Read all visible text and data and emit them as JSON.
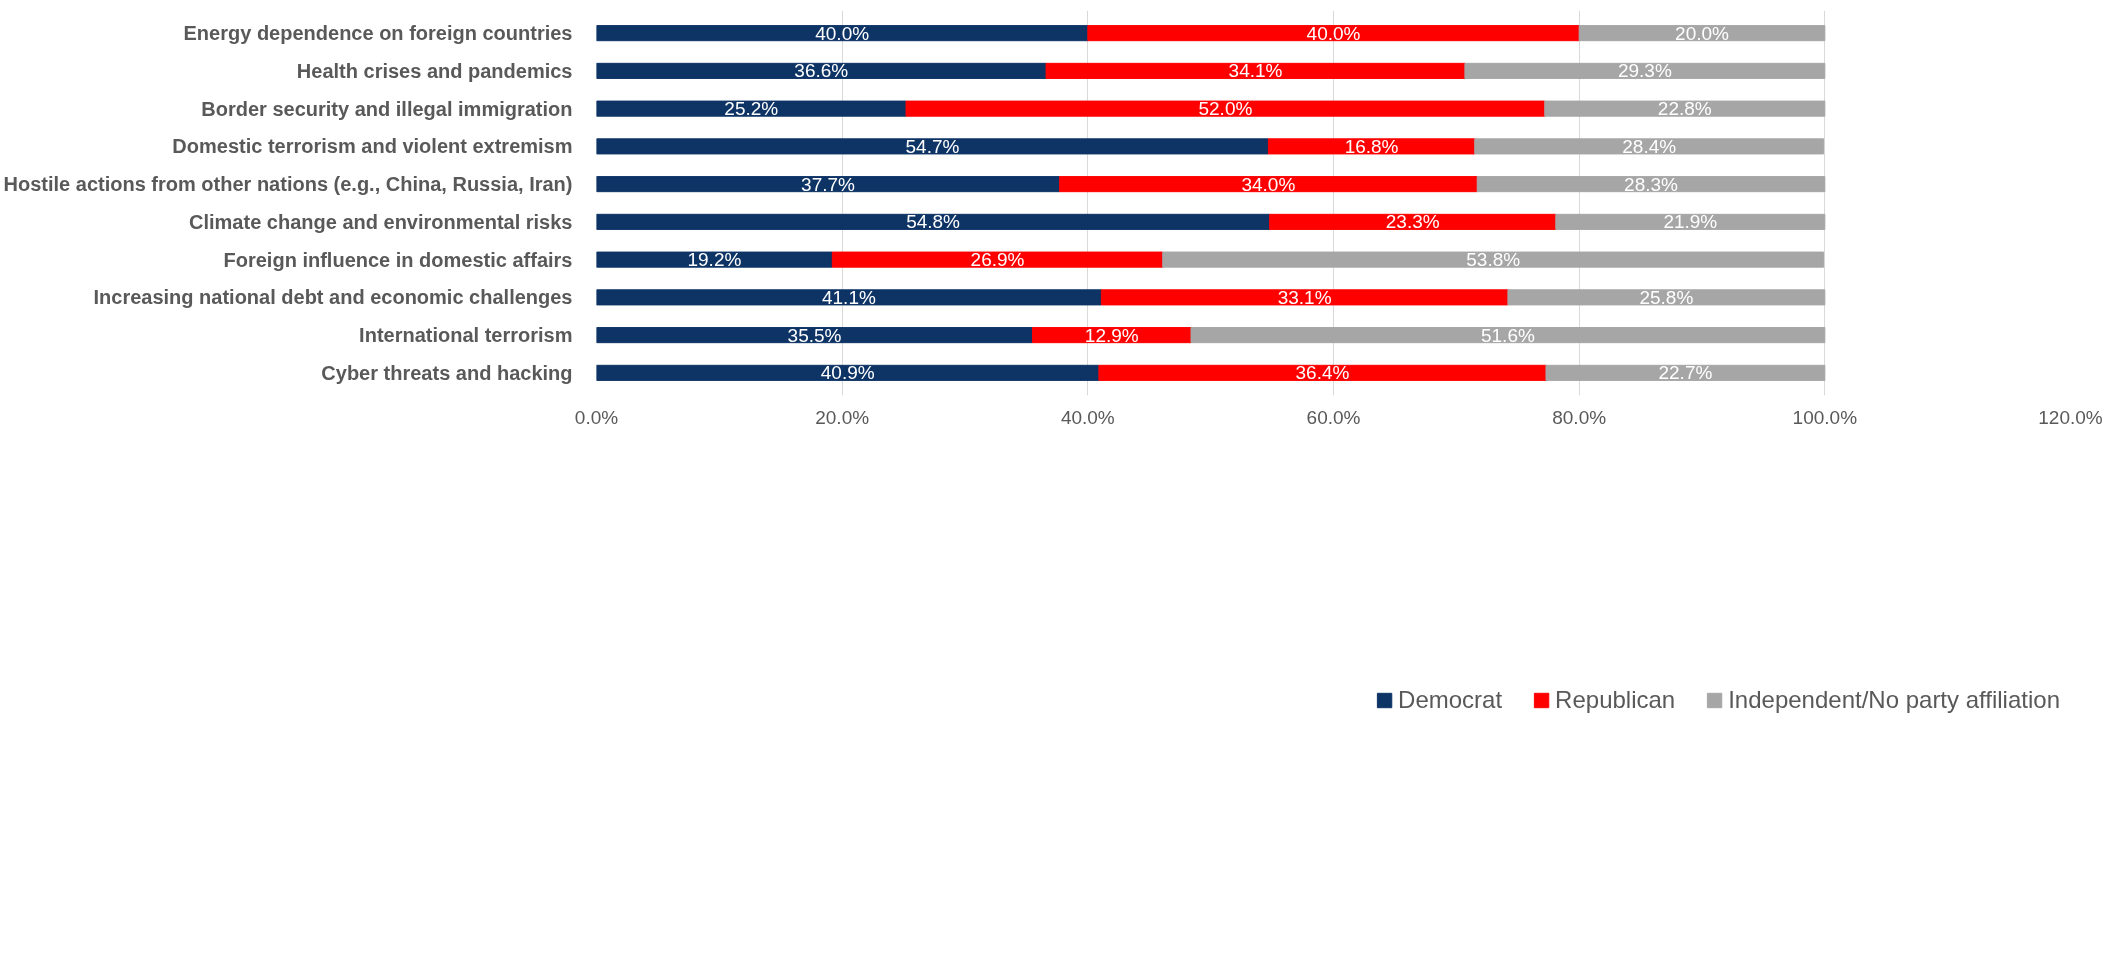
{
  "chart_data": {
    "type": "bar",
    "orientation": "horizontal",
    "stacked": true,
    "categories": [
      "Energy dependence on foreign countries",
      "Health crises and pandemics",
      "Border security and illegal immigration",
      "Domestic terrorism and violent extremism",
      "Hostile actions from other nations (e.g., China, Russia, Iran)",
      "Climate change and environmental risks",
      "Foreign influence in domestic affairs",
      "Increasing national debt and economic challenges",
      "International terrorism",
      "Cyber threats and hacking"
    ],
    "series": [
      {
        "name": "Democrat",
        "color": "#0e3466",
        "values": [
          40.0,
          36.6,
          25.2,
          54.7,
          37.7,
          54.8,
          19.2,
          41.1,
          35.5,
          40.9
        ],
        "value_labels": [
          "40.0%",
          "36.6%",
          "25.2%",
          "54.7%",
          "37.7%",
          "54.8%",
          "19.2%",
          "41.1%",
          "35.5%",
          "40.9%"
        ]
      },
      {
        "name": "Republican",
        "color": "#ff0000",
        "values": [
          40.0,
          34.1,
          52.0,
          16.8,
          34.0,
          23.3,
          26.9,
          33.1,
          12.9,
          36.4
        ],
        "value_labels": [
          "40.0%",
          "34.1%",
          "52.0%",
          "16.8%",
          "34.0%",
          "23.3%",
          "26.9%",
          "33.1%",
          "12.9%",
          "36.4%"
        ]
      },
      {
        "name": "Independent/No party affiliation",
        "color": "#a6a6a6",
        "values": [
          20.0,
          29.3,
          22.8,
          28.4,
          28.3,
          21.9,
          53.8,
          25.8,
          51.6,
          22.7
        ],
        "value_labels": [
          "20.0%",
          "29.3%",
          "22.8%",
          "28.4%",
          "28.3%",
          "21.9%",
          "53.8%",
          "25.8%",
          "51.6%",
          "22.7%"
        ]
      }
    ],
    "xlim": [
      0,
      120
    ],
    "xticks": [
      {
        "value": 0,
        "label": "0.0%"
      },
      {
        "value": 20,
        "label": "20.0%"
      },
      {
        "value": 40,
        "label": "40.0%"
      },
      {
        "value": 60,
        "label": "60.0%"
      },
      {
        "value": 80,
        "label": "80.0%"
      },
      {
        "value": 100,
        "label": "100.0%"
      },
      {
        "value": 120,
        "label": "120.0%"
      }
    ],
    "grid": "x",
    "legend": "bottom"
  }
}
